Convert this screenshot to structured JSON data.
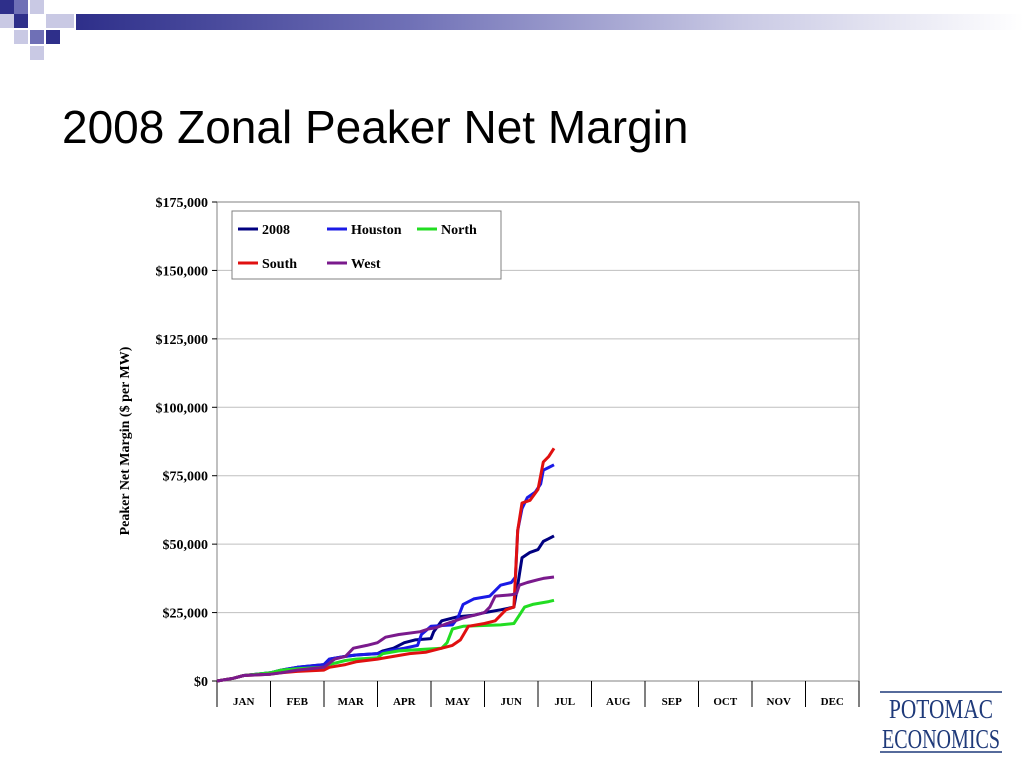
{
  "slide": {
    "title": "2008 Zonal Peaker Net Margin",
    "logo_line1": "POTOMAC",
    "logo_line2": "ECONOMICS"
  },
  "colors": {
    "deco_dark": "#2e2f8a",
    "deco_mid": "#6f70b6",
    "deco_light": "#c9c9e4"
  },
  "chart_data": {
    "type": "line",
    "title": "",
    "xlabel": "",
    "ylabel": "Peaker Net Margin ($ per MW)",
    "ylim": [
      0,
      175000
    ],
    "yticks": [
      0,
      25000,
      50000,
      75000,
      100000,
      125000,
      150000,
      175000
    ],
    "ytick_labels": [
      "$0",
      "$25,000",
      "$50,000",
      "$75,000",
      "$100,000",
      "$125,000",
      "$150,000",
      "$175,000"
    ],
    "categories": [
      "JAN",
      "FEB",
      "MAR",
      "APR",
      "MAY",
      "JUN",
      "JUL",
      "AUG",
      "SEP",
      "OCT",
      "NOV",
      "DEC"
    ],
    "x_unit": "month (0 = Jan 1, 12 = Dec 31)",
    "grid": "horizontal",
    "legend_placement": "top-left",
    "series": [
      {
        "name": "2008",
        "color": "#000080",
        "points": [
          [
            0,
            0
          ],
          [
            0.3,
            1000
          ],
          [
            0.5,
            2000
          ],
          [
            1.0,
            3000
          ],
          [
            1.2,
            4000
          ],
          [
            1.5,
            5000
          ],
          [
            2.0,
            6000
          ],
          [
            2.1,
            8000
          ],
          [
            2.4,
            9000
          ],
          [
            2.6,
            9500
          ],
          [
            3.0,
            10000
          ],
          [
            3.1,
            11000
          ],
          [
            3.3,
            12000
          ],
          [
            3.5,
            14000
          ],
          [
            3.7,
            15000
          ],
          [
            4.0,
            15500
          ],
          [
            4.05,
            18000
          ],
          [
            4.2,
            22000
          ],
          [
            4.5,
            23500
          ],
          [
            4.8,
            24000
          ],
          [
            5.0,
            25000
          ],
          [
            5.3,
            26000
          ],
          [
            5.55,
            27000
          ],
          [
            5.62,
            35000
          ],
          [
            5.7,
            45000
          ],
          [
            5.85,
            47000
          ],
          [
            6.0,
            48000
          ],
          [
            6.1,
            51000
          ],
          [
            6.2,
            52000
          ],
          [
            6.3,
            53000
          ]
        ]
      },
      {
        "name": "Houston",
        "color": "#1a1ae6",
        "points": [
          [
            0,
            0
          ],
          [
            0.3,
            1000
          ],
          [
            0.5,
            2000
          ],
          [
            1.0,
            3000
          ],
          [
            1.2,
            4000
          ],
          [
            1.5,
            5000
          ],
          [
            2.0,
            6000
          ],
          [
            2.1,
            8000
          ],
          [
            2.4,
            9000
          ],
          [
            2.6,
            9500
          ],
          [
            3.0,
            10000
          ],
          [
            3.2,
            11000
          ],
          [
            3.5,
            12000
          ],
          [
            3.75,
            13000
          ],
          [
            3.82,
            17000
          ],
          [
            4.0,
            20000
          ],
          [
            4.4,
            20500
          ],
          [
            4.5,
            23000
          ],
          [
            4.6,
            28000
          ],
          [
            4.8,
            30000
          ],
          [
            5.1,
            31000
          ],
          [
            5.3,
            35000
          ],
          [
            5.5,
            36000
          ],
          [
            5.58,
            38000
          ],
          [
            5.62,
            55000
          ],
          [
            5.7,
            63000
          ],
          [
            5.8,
            67000
          ],
          [
            5.95,
            69000
          ],
          [
            6.05,
            72000
          ],
          [
            6.1,
            77000
          ],
          [
            6.2,
            78000
          ],
          [
            6.3,
            79000
          ]
        ]
      },
      {
        "name": "North",
        "color": "#22dd22",
        "points": [
          [
            0,
            0
          ],
          [
            0.3,
            1000
          ],
          [
            0.5,
            2000
          ],
          [
            1.0,
            3000
          ],
          [
            1.2,
            4000
          ],
          [
            1.5,
            4500
          ],
          [
            2.0,
            5000
          ],
          [
            2.1,
            6000
          ],
          [
            2.4,
            7500
          ],
          [
            2.6,
            8000
          ],
          [
            3.0,
            8500
          ],
          [
            3.1,
            10000
          ],
          [
            3.4,
            11000
          ],
          [
            3.8,
            11500
          ],
          [
            4.2,
            12000
          ],
          [
            4.3,
            14000
          ],
          [
            4.4,
            19000
          ],
          [
            4.6,
            20000
          ],
          [
            5.3,
            20500
          ],
          [
            5.55,
            21000
          ],
          [
            5.65,
            24000
          ],
          [
            5.75,
            27000
          ],
          [
            5.9,
            28000
          ],
          [
            6.05,
            28500
          ],
          [
            6.2,
            29000
          ],
          [
            6.3,
            29500
          ]
        ]
      },
      {
        "name": "South",
        "color": "#e01010",
        "points": [
          [
            0,
            0
          ],
          [
            0.3,
            1000
          ],
          [
            0.5,
            2000
          ],
          [
            1.0,
            2500
          ],
          [
            1.2,
            3000
          ],
          [
            1.5,
            3500
          ],
          [
            2.0,
            4000
          ],
          [
            2.1,
            5000
          ],
          [
            2.4,
            6000
          ],
          [
            2.6,
            7000
          ],
          [
            3.0,
            8000
          ],
          [
            3.3,
            9000
          ],
          [
            3.6,
            10000
          ],
          [
            3.9,
            10500
          ],
          [
            4.0,
            11000
          ],
          [
            4.2,
            12000
          ],
          [
            4.4,
            13000
          ],
          [
            4.55,
            15000
          ],
          [
            4.7,
            20000
          ],
          [
            5.0,
            21000
          ],
          [
            5.2,
            22000
          ],
          [
            5.4,
            26000
          ],
          [
            5.55,
            27000
          ],
          [
            5.62,
            55000
          ],
          [
            5.7,
            65000
          ],
          [
            5.85,
            66000
          ],
          [
            6.0,
            70000
          ],
          [
            6.1,
            80000
          ],
          [
            6.2,
            82000
          ],
          [
            6.3,
            85000
          ]
        ]
      },
      {
        "name": "West",
        "color": "#7a1a8c",
        "points": [
          [
            0,
            0
          ],
          [
            0.3,
            1000
          ],
          [
            0.5,
            2000
          ],
          [
            1.0,
            2500
          ],
          [
            1.2,
            3000
          ],
          [
            1.5,
            4000
          ],
          [
            2.0,
            5000
          ],
          [
            2.2,
            8000
          ],
          [
            2.4,
            9000
          ],
          [
            2.55,
            12000
          ],
          [
            2.8,
            13000
          ],
          [
            3.0,
            14000
          ],
          [
            3.15,
            16000
          ],
          [
            3.4,
            17000
          ],
          [
            3.8,
            18000
          ],
          [
            3.95,
            19000
          ],
          [
            4.1,
            19500
          ],
          [
            4.3,
            21000
          ],
          [
            4.45,
            22000
          ],
          [
            4.6,
            23000
          ],
          [
            4.8,
            24000
          ],
          [
            5.0,
            25000
          ],
          [
            5.1,
            27000
          ],
          [
            5.2,
            31000
          ],
          [
            5.5,
            31500
          ],
          [
            5.6,
            32000
          ],
          [
            5.65,
            35000
          ],
          [
            5.8,
            36000
          ],
          [
            6.0,
            37000
          ],
          [
            6.1,
            37500
          ],
          [
            6.3,
            38000
          ]
        ]
      }
    ]
  }
}
